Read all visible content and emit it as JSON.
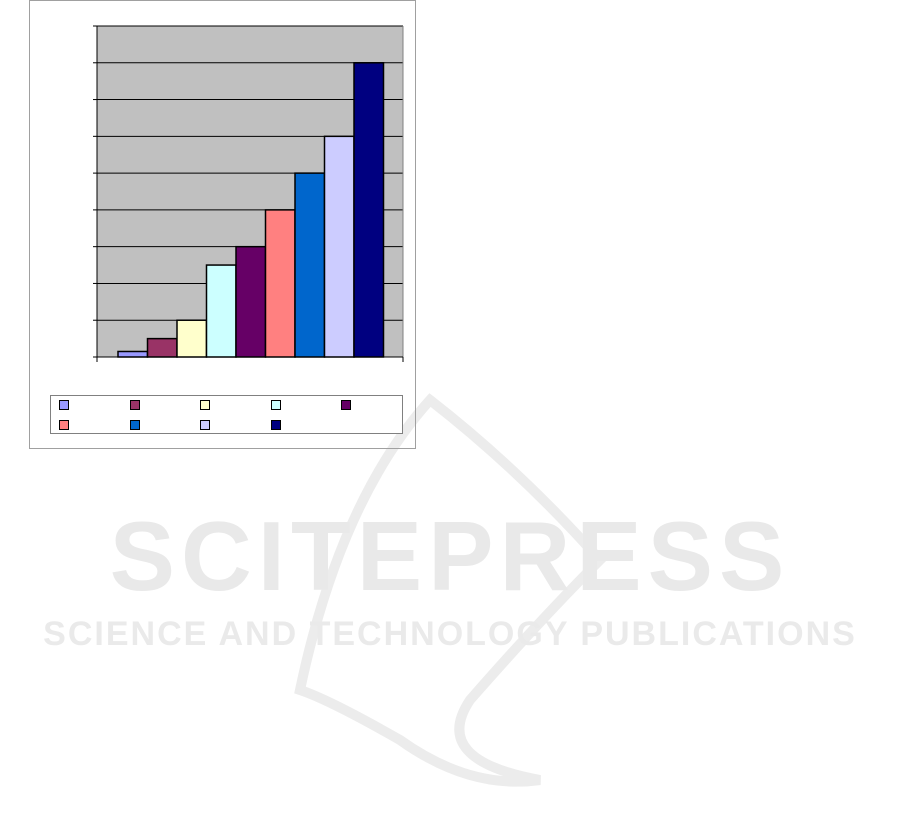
{
  "chart_data": {
    "type": "bar",
    "title": "",
    "xlabel": "",
    "ylabel": "",
    "ylim": [
      0,
      9
    ],
    "grid": true,
    "legend_placement": "bottom",
    "plot_background": "#c0c0c0",
    "series": [
      {
        "values": [
          0.15
        ],
        "color": "#9999ff"
      },
      {
        "values": [
          0.5
        ],
        "color": "#993366"
      },
      {
        "values": [
          1
        ],
        "color": "#ffffcc"
      },
      {
        "values": [
          2.5
        ],
        "color": "#ccffff"
      },
      {
        "values": [
          3
        ],
        "color": "#660066"
      },
      {
        "values": [
          4
        ],
        "color": "#ff8080"
      },
      {
        "values": [
          5
        ],
        "color": "#0066cc"
      },
      {
        "values": [
          6
        ],
        "color": "#ccccff"
      },
      {
        "values": [
          8
        ],
        "color": "#000080"
      }
    ]
  },
  "watermark": {
    "line1": "SCITEPRESS",
    "line2": "SCIENCE AND TECHNOLOGY PUBLICATIONS"
  }
}
